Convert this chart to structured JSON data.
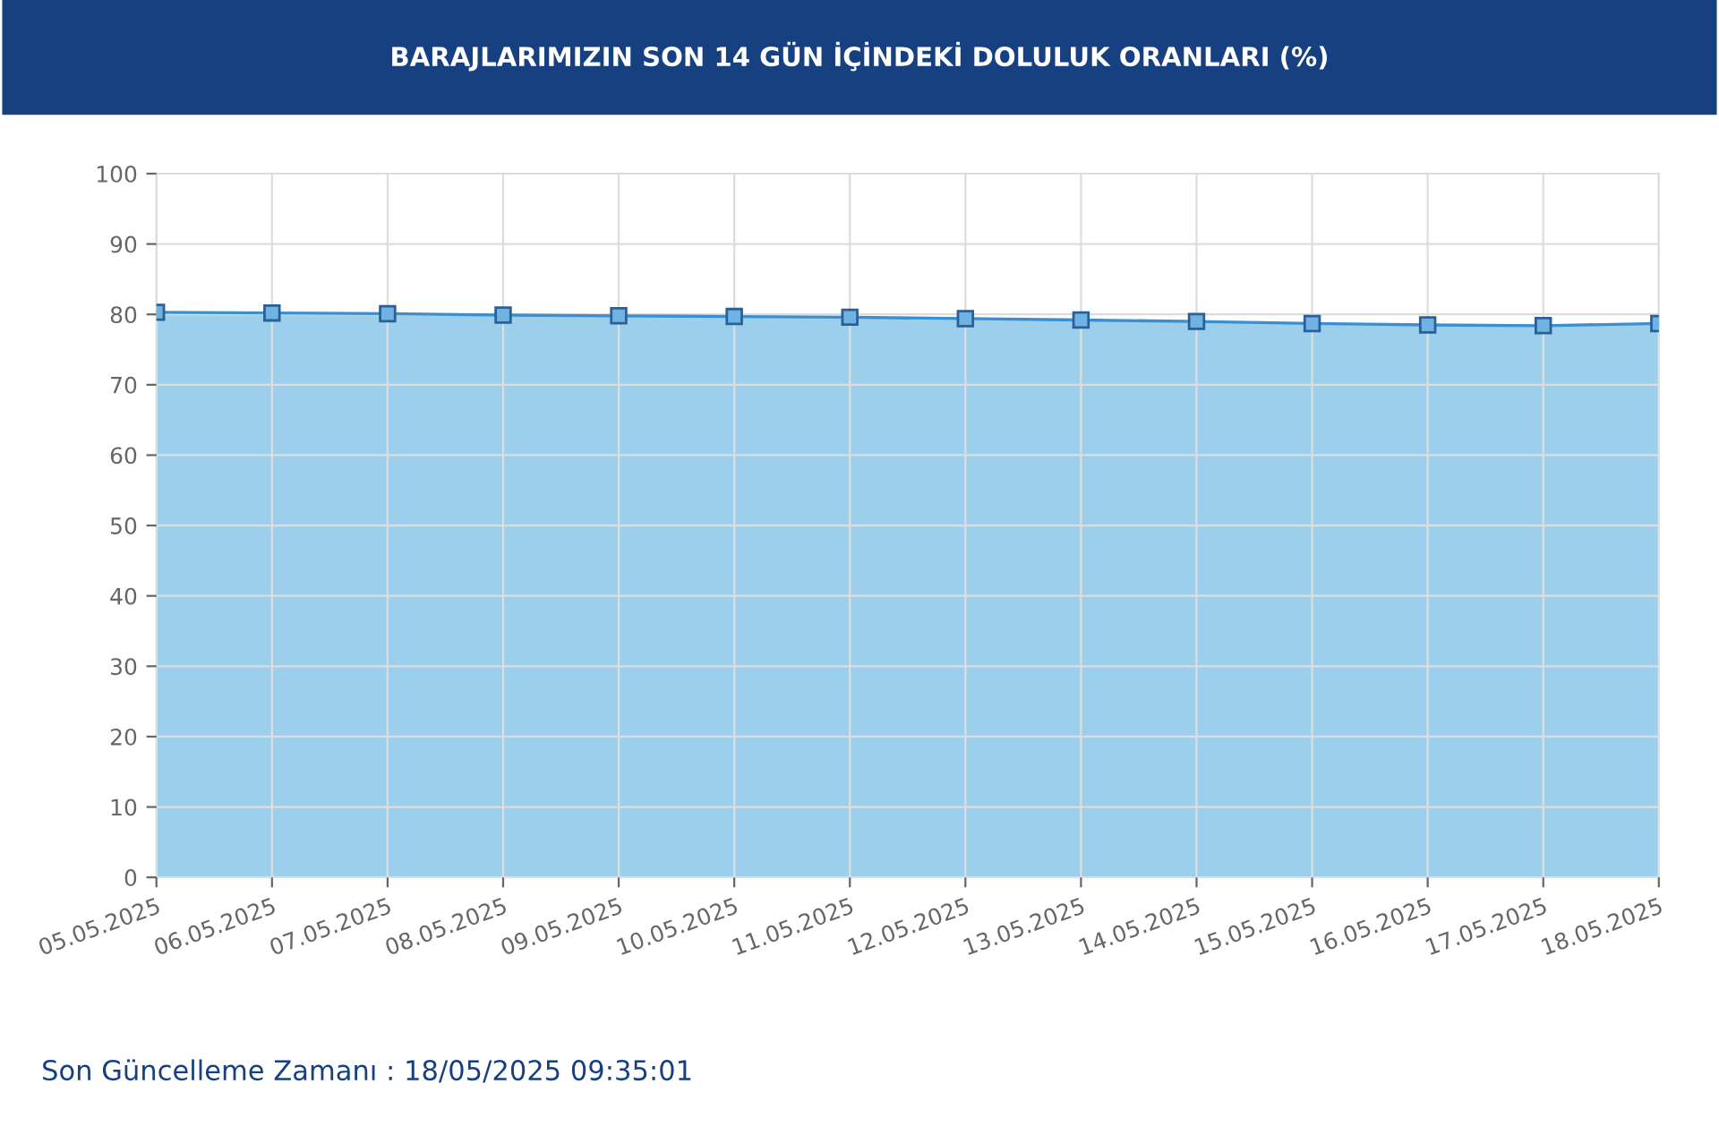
{
  "chart_data": {
    "type": "area",
    "title": "BARAJLARIMIZIN SON 14 GÜN İÇİNDEKİ DOLULUK ORANLARI (%)",
    "categories": [
      "05.05.2025",
      "06.05.2025",
      "07.05.2025",
      "08.05.2025",
      "09.05.2025",
      "10.05.2025",
      "11.05.2025",
      "12.05.2025",
      "13.05.2025",
      "14.05.2025",
      "15.05.2025",
      "16.05.2025",
      "17.05.2025",
      "18.05.2025"
    ],
    "series": [
      {
        "color": "#3a8fd0",
        "values": [
          80.3,
          80.2,
          80.1,
          79.9,
          79.8,
          79.7,
          79.6,
          79.4,
          79.2,
          79.0,
          78.7,
          78.5,
          78.4,
          78.7
        ]
      }
    ],
    "ylim": [
      0,
      100
    ],
    "yticks": [
      0,
      10,
      20,
      30,
      40,
      50,
      60,
      70,
      80,
      90,
      100
    ],
    "grid": true,
    "marker": "square",
    "line_style": "solid",
    "annotations": [
      "Son Güncelleme Zamanı : 18/05/2025 09:35:01"
    ]
  }
}
